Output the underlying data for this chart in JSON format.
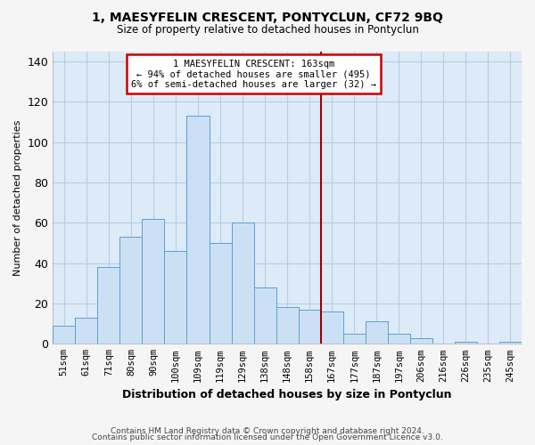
{
  "title": "1, MAESYFELIN CRESCENT, PONTYCLUN, CF72 9BQ",
  "subtitle": "Size of property relative to detached houses in Pontyclun",
  "xlabel": "Distribution of detached houses by size in Pontyclun",
  "ylabel": "Number of detached properties",
  "bar_labels": [
    "51sqm",
    "61sqm",
    "71sqm",
    "80sqm",
    "90sqm",
    "100sqm",
    "109sqm",
    "119sqm",
    "129sqm",
    "138sqm",
    "148sqm",
    "158sqm",
    "167sqm",
    "177sqm",
    "187sqm",
    "197sqm",
    "206sqm",
    "216sqm",
    "226sqm",
    "235sqm",
    "245sqm"
  ],
  "bar_heights": [
    9,
    13,
    38,
    53,
    62,
    46,
    113,
    50,
    60,
    28,
    18,
    17,
    16,
    5,
    11,
    5,
    3,
    0,
    1,
    0,
    1
  ],
  "bar_color": "#cce0f5",
  "bar_edge_color": "#5a9fd4",
  "reference_line_index": 12.0,
  "annotation_title": "1 MAESYFELIN CRESCENT: 163sqm",
  "annotation_line1": "← 94% of detached houses are smaller (495)",
  "annotation_line2": "6% of semi-detached houses are larger (32) →",
  "annotation_box_color": "#ffffff",
  "annotation_box_edge": "#cc0000",
  "reference_line_color": "#990000",
  "ylim": [
    0,
    145
  ],
  "yticks": [
    0,
    20,
    40,
    60,
    80,
    100,
    120,
    140
  ],
  "grid_color": "#b8cee0",
  "bg_color": "#ddeaf8",
  "fig_bg_color": "#f5f5f5",
  "footer1": "Contains HM Land Registry data © Crown copyright and database right 2024.",
  "footer2": "Contains public sector information licensed under the Open Government Licence v3.0."
}
